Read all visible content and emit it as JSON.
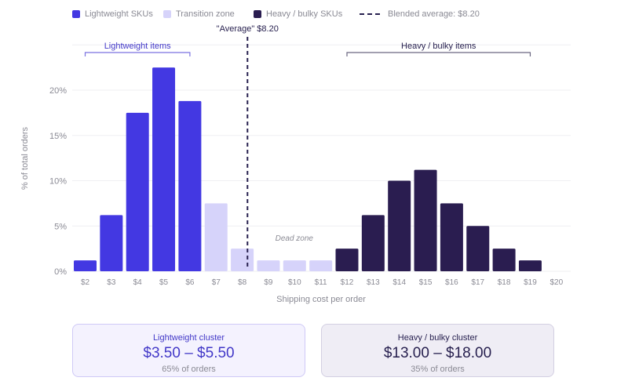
{
  "legend": {
    "items": [
      {
        "label": "Lightweight SKUs",
        "color": "#4338e2"
      },
      {
        "label": "Transition zone",
        "color": "#d6d3fa"
      },
      {
        "label": "Heavy / bulky SKUs",
        "color": "#2a1d50"
      },
      {
        "label": "Blended average: $8.20",
        "color": "#27204f"
      }
    ]
  },
  "chart_data": {
    "type": "bar",
    "title": "",
    "xlabel": "Shipping cost per order",
    "ylabel": "% of total orders",
    "categories": [
      "$2",
      "$3",
      "$4",
      "$5",
      "$6",
      "$7",
      "$8",
      "$9",
      "$10",
      "$11",
      "$12",
      "$13",
      "$14",
      "$15",
      "$16",
      "$17",
      "$18",
      "$19",
      "$20"
    ],
    "values": [
      1.2,
      6.2,
      17.5,
      22.5,
      18.8,
      7.5,
      2.5,
      1.2,
      1.2,
      1.2,
      2.5,
      6.2,
      10.0,
      11.2,
      7.5,
      5.0,
      2.5,
      1.2,
      0
    ],
    "groups": [
      "light",
      "light",
      "light",
      "light",
      "light",
      "transition",
      "transition",
      "transition",
      "transition",
      "transition",
      "heavy",
      "heavy",
      "heavy",
      "heavy",
      "heavy",
      "heavy",
      "heavy",
      "heavy",
      "heavy"
    ],
    "colors": {
      "light": "#4338e2",
      "transition": "#d6d3fa",
      "heavy": "#2a1d50"
    },
    "ylim": [
      0,
      25
    ],
    "yticks": [
      0,
      5,
      10,
      15,
      20
    ],
    "ytick_labels": [
      "0%",
      "5%",
      "10%",
      "15%",
      "20%"
    ],
    "grid": true,
    "average": {
      "value": 8.2,
      "label": "\"Average\" $8.20"
    },
    "annotations": [
      {
        "text": "Lightweight items",
        "from": 2,
        "to": 6,
        "style": "light"
      },
      {
        "text": "Heavy / bulky items",
        "from": 12,
        "to": 19,
        "style": "heavy"
      },
      {
        "text": "Dead zone",
        "at": 10,
        "style": "note"
      }
    ]
  },
  "cards": {
    "light": {
      "title": "Lightweight cluster",
      "range": "$3.50 – $5.50",
      "sub": "65% of orders"
    },
    "heavy": {
      "title": "Heavy / bulky cluster",
      "range": "$13.00 – $18.00",
      "sub": "35% of orders"
    }
  }
}
